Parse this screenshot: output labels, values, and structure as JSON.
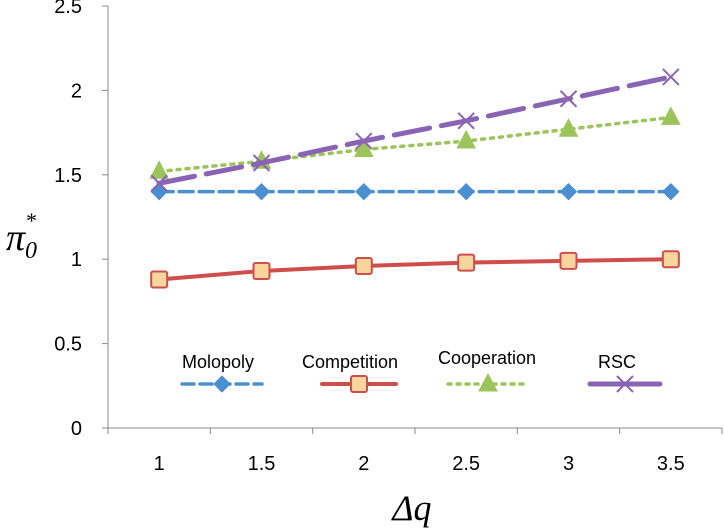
{
  "chart_data": {
    "type": "line",
    "title": "",
    "xlabel": "Δq",
    "ylabel": {
      "symbol": "π",
      "subscript": "0",
      "superscript": "*"
    },
    "categories": [
      "1",
      "1.5",
      "2",
      "2.5",
      "3",
      "3.5"
    ],
    "x": [
      1,
      1.5,
      2,
      2.5,
      3,
      3.5
    ],
    "ylim": [
      0,
      2.5
    ],
    "yticks": [
      "0",
      "0.5",
      "1",
      "1.5",
      "2",
      "2.5"
    ],
    "grid": false,
    "legend_position": "bottom-inside",
    "series": [
      {
        "name": "Molopoly",
        "values": [
          1.4,
          1.4,
          1.4,
          1.4,
          1.4,
          1.4
        ],
        "color": "#4a90d0",
        "marker": "diamond",
        "dash": "dashed"
      },
      {
        "name": "Competition",
        "values": [
          0.88,
          0.93,
          0.96,
          0.98,
          0.99,
          1.0
        ],
        "color": "#cf4d4a",
        "marker": "square",
        "dash": "solid"
      },
      {
        "name": "Cooperation",
        "values": [
          1.52,
          1.58,
          1.65,
          1.7,
          1.77,
          1.84
        ],
        "color": "#9bc45a",
        "marker": "triangle",
        "dash": "dotted"
      },
      {
        "name": "RSC",
        "values": [
          1.45,
          1.57,
          1.7,
          1.82,
          1.95,
          2.08
        ],
        "color": "#8a64b4",
        "marker": "x",
        "dash": "longdash"
      }
    ]
  }
}
